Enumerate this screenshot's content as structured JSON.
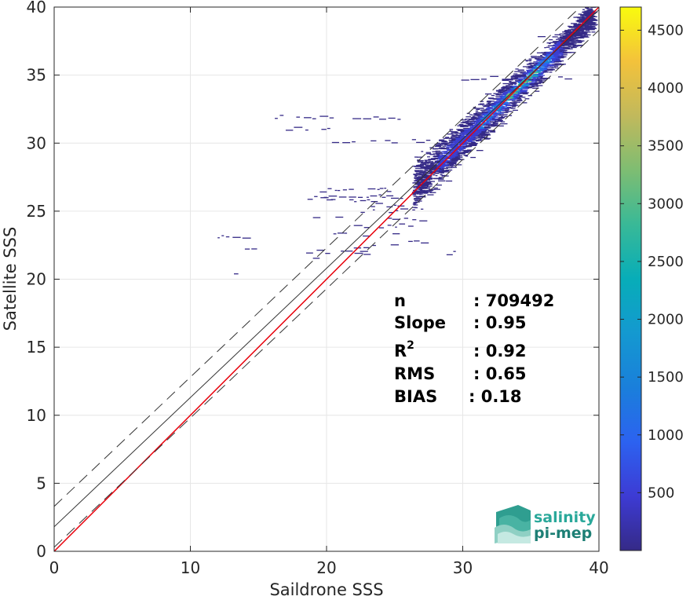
{
  "chart_data": {
    "type": "heatmap",
    "title": "",
    "xlabel": "Saildrone SSS",
    "ylabel": "Satellite SSS",
    "xlim": [
      0,
      40
    ],
    "ylim": [
      0,
      40
    ],
    "xticks": [
      0,
      10,
      20,
      30,
      40
    ],
    "yticks": [
      0,
      5,
      10,
      15,
      20,
      25,
      30,
      35,
      40
    ],
    "grid": true,
    "colorbar": {
      "colormap": "parula",
      "range": [
        0,
        4700
      ],
      "ticks": [
        500,
        1000,
        1500,
        2000,
        2500,
        3000,
        3500,
        4000,
        4500
      ]
    },
    "density_clusters": [
      {
        "x": [
          26.5,
          39.5
        ],
        "y": [
          24.5,
          39.5
        ],
        "level": "main diagonal cloud"
      },
      {
        "x": [
          28,
          37
        ],
        "y": [
          28,
          36
        ],
        "level": "core"
      },
      {
        "x": [
          32,
          36
        ],
        "y": [
          32,
          36
        ],
        "level": "peak"
      },
      {
        "x": [
          16,
          27
        ],
        "y": [
          24,
          28
        ],
        "level": "horizontal streaks"
      },
      {
        "x": [
          18,
          30
        ],
        "y": [
          20,
          24
        ],
        "level": "horizontal streaks"
      },
      {
        "x": [
          16,
          25
        ],
        "y": [
          31,
          32
        ],
        "level": "horizontal streaks"
      }
    ],
    "reference_lines": [
      {
        "name": "red",
        "role": "1:1",
        "x": [
          0,
          40
        ],
        "y": [
          0,
          40
        ],
        "color": "#e8000b",
        "style": "solid"
      },
      {
        "name": "fit",
        "role": "regression",
        "x": [
          0,
          40
        ],
        "y": [
          1.8,
          39.8
        ],
        "color": "#333333",
        "style": "solid"
      },
      {
        "name": "upper",
        "role": "fit + 2 std",
        "x": [
          0,
          40
        ],
        "y": [
          3.3,
          41.3
        ],
        "color": "#333333",
        "style": "dashed"
      },
      {
        "name": "lower",
        "role": "fit - 2 std",
        "x": [
          0,
          40
        ],
        "y": [
          0.3,
          38.3
        ],
        "color": "#333333",
        "style": "dashed"
      }
    ],
    "stats": [
      {
        "label": "n",
        "value": ": 709492"
      },
      {
        "label": "Slope",
        "value": ": 0.95"
      },
      {
        "label": "R",
        "sup": "2",
        "value": ": 0.92"
      },
      {
        "label": "RMS",
        "value": ": 0.65"
      },
      {
        "label": "BIAS",
        "value": ": 0.18"
      }
    ]
  },
  "logo": {
    "line1": "salinity",
    "line2": "pi-mep",
    "color1": "#2aa89a",
    "color2": "#1d7f75"
  }
}
